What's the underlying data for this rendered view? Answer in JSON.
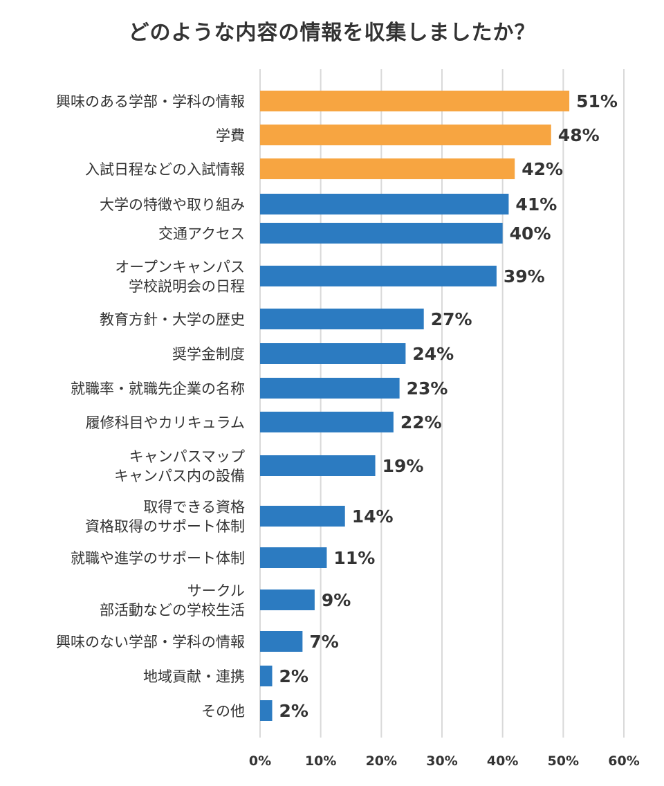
{
  "chart_data": {
    "type": "bar",
    "orientation": "horizontal",
    "title": "どのような内容の情報を収集しましたか？",
    "xlabel": "",
    "ylabel": "",
    "xlim": [
      0,
      60
    ],
    "grid": true,
    "ticks": [
      "0%",
      "10%",
      "20%",
      "30%",
      "40%",
      "50%",
      "60%"
    ],
    "tick_values": [
      0,
      10,
      20,
      30,
      40,
      50,
      60
    ],
    "colors": {
      "highlight": "#F7A541",
      "default": "#2C7BC1"
    },
    "categories": [
      {
        "lines": [
          "興味のある学部・学科の情報"
        ],
        "value": 51,
        "label": "51%",
        "highlight": true
      },
      {
        "lines": [
          "学費"
        ],
        "value": 48,
        "label": "48%",
        "highlight": true
      },
      {
        "lines": [
          "入試日程などの入試情報"
        ],
        "value": 42,
        "label": "42%",
        "highlight": true
      },
      {
        "lines": [
          "大学の特徴や取り組み"
        ],
        "value": 41,
        "label": "41%",
        "highlight": false
      },
      {
        "lines": [
          "交通アクセス"
        ],
        "value": 40,
        "label": "40%",
        "highlight": false
      },
      {
        "lines": [
          "オープンキャンパス",
          "学校説明会の日程"
        ],
        "value": 39,
        "label": "39%",
        "highlight": false
      },
      {
        "lines": [
          "教育方針・大学の歴史"
        ],
        "value": 27,
        "label": "27%",
        "highlight": false
      },
      {
        "lines": [
          "奨学金制度"
        ],
        "value": 24,
        "label": "24%",
        "highlight": false
      },
      {
        "lines": [
          "就職率・就職先企業の名称"
        ],
        "value": 23,
        "label": "23%",
        "highlight": false
      },
      {
        "lines": [
          "履修科目やカリキュラム"
        ],
        "value": 22,
        "label": "22%",
        "highlight": false
      },
      {
        "lines": [
          "キャンパスマップ",
          "キャンパス内の設備"
        ],
        "value": 19,
        "label": "19%",
        "highlight": false
      },
      {
        "lines": [
          "取得できる資格",
          "資格取得のサポート体制"
        ],
        "value": 14,
        "label": "14%",
        "highlight": false
      },
      {
        "lines": [
          "就職や進学のサポート体制"
        ],
        "value": 11,
        "label": "11%",
        "highlight": false
      },
      {
        "lines": [
          "サークル",
          "部活動などの学校生活"
        ],
        "value": 9,
        "label": "9%",
        "highlight": false
      },
      {
        "lines": [
          "興味のない学部・学科の情報"
        ],
        "value": 7,
        "label": "7%",
        "highlight": false
      },
      {
        "lines": [
          "地域貢献・連携"
        ],
        "value": 2,
        "label": "2%",
        "highlight": false
      },
      {
        "lines": [
          "その他"
        ],
        "value": 2,
        "label": "2%",
        "highlight": false
      }
    ]
  }
}
